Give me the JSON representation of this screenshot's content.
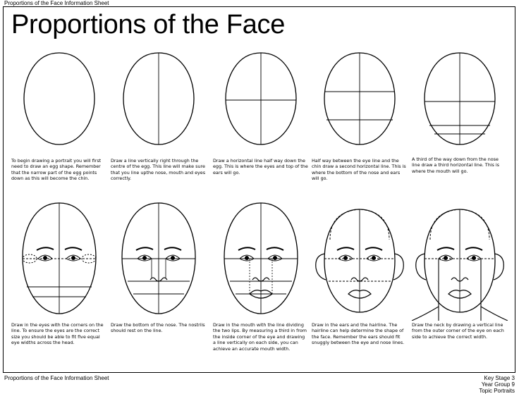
{
  "sheet_header": "Proportions of the Face Information Sheet",
  "title": "Proportions of the Face",
  "steps": [
    "To begin drawing a portrait you will first need to draw an egg shape. Remember that the narrow part of the egg points down as this will become the chin.",
    "Draw a line vertically right through the centre of the egg. This line will make sure that you line upthe nose, mouth and eyes correctly.",
    "Draw a horizontal line half way down the egg. This is where the eyes and top of the ears will go.",
    "Half way between the eye line and the chin draw a second horizontal line. This is where the bottom of the nose and ears will go.",
    "A third of the way down from the nose line draw a third horizontal line. This is where the mouth will go.",
    "Draw in the eyes with the corners on the line. To ensure the eyes are the correct size you should be able to fit five equal eye widths across the head.",
    "Draw the bottom of the nose. The nostrils should rest on the line.",
    "Draw in the mouth with the line dividing the two lips. By measuring a third in from the inside corner of the eye and drawing a line vertically on each side, you can achieve an accurate mouth width.",
    "Draw in the ears and the hairline. The hairline can help determine the shape of the face. Remember the ears should fit snuggly between the eye and nose lines.",
    "Draw the neck by drawing a vertical line from the outer corner of the eye on each side to achieve the correct width."
  ],
  "footer": {
    "left": "Proportions of the Face Information Sheet",
    "right_lines": [
      "Key Stage 3",
      "Year Group 9",
      "Topic Portraits"
    ]
  }
}
